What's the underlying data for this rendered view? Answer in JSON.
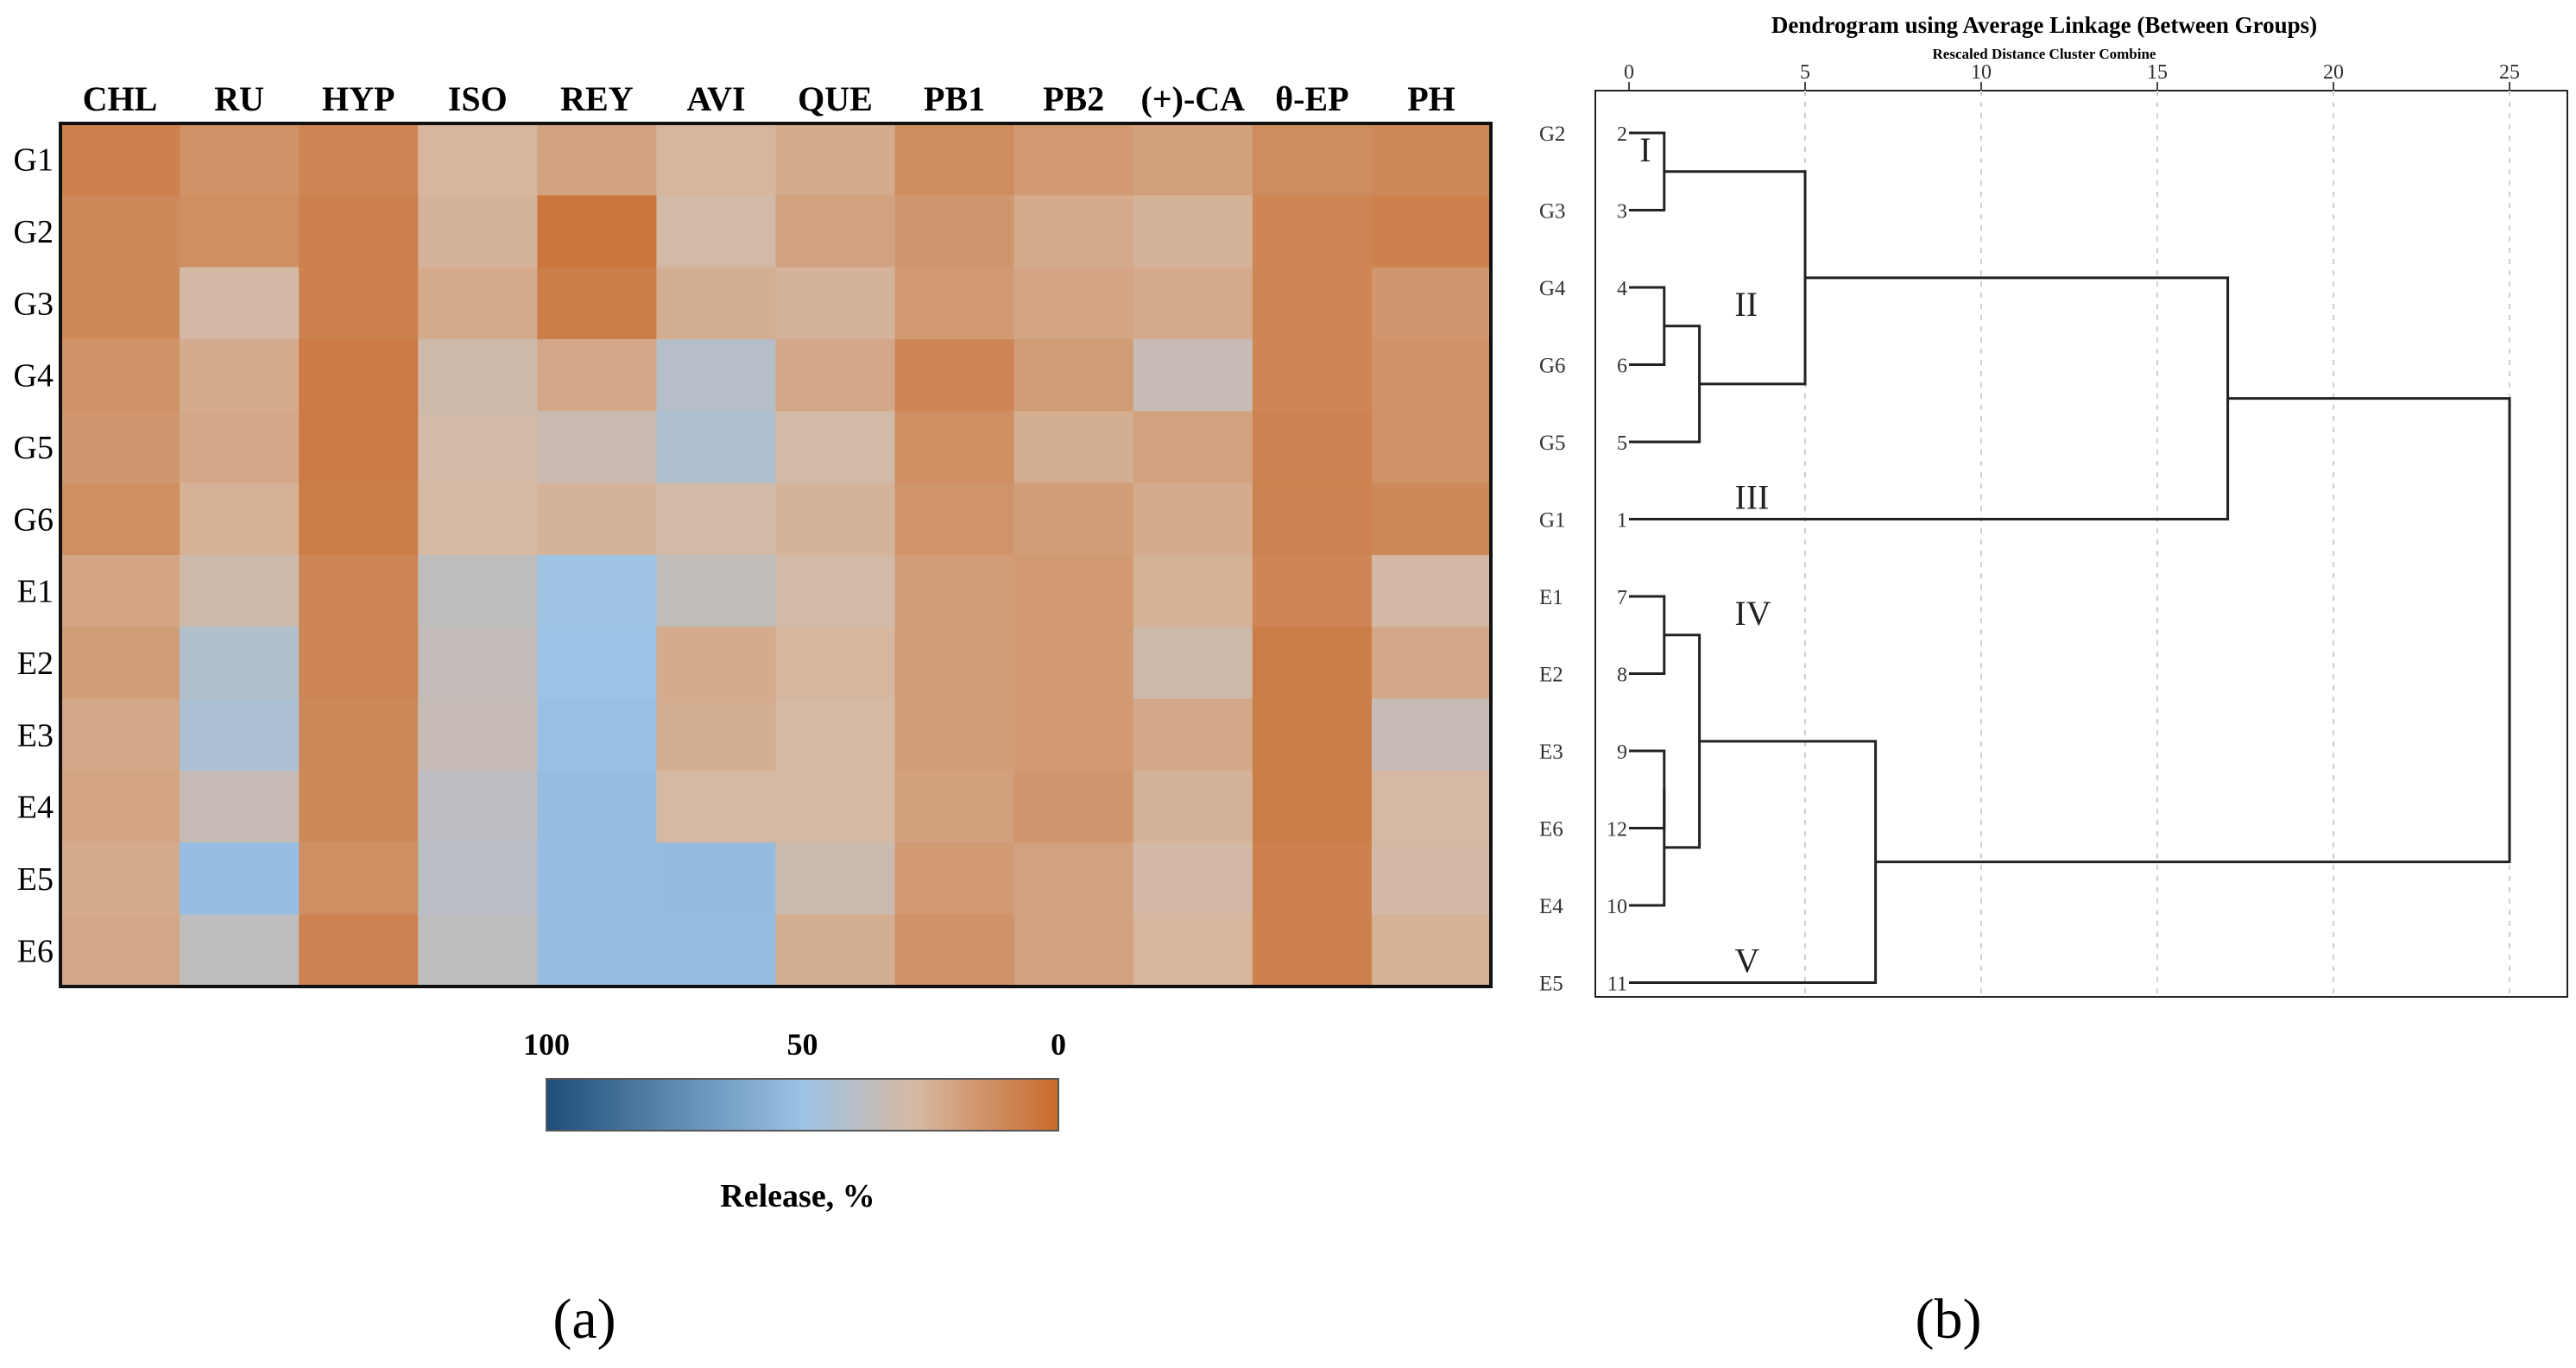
{
  "colors": {
    "low": "#1f4e79",
    "mid": "#9cc3e6",
    "neutral": "#d6b9a2",
    "high": "#c96a2b",
    "frame": "#111111",
    "dendro_line": "#222222",
    "grid": "#cfcfcf"
  },
  "panels": {
    "a": "(a)",
    "b": "(b)"
  },
  "chart_data": [
    {
      "type": "heatmap",
      "title": "",
      "columns": [
        "CHL",
        "RU",
        "HYP",
        "ISO",
        "REY",
        "AVI",
        "QUE",
        "PB1",
        "PB2",
        "(+)-CA",
        "θ-EP",
        "PH"
      ],
      "rows": [
        "G1",
        "G2",
        "G3",
        "G4",
        "G5",
        "G6",
        "E1",
        "E2",
        "E3",
        "E4",
        "E5",
        "E6"
      ],
      "values": [
        [
          8,
          14,
          10,
          27,
          20,
          27,
          23,
          12,
          17,
          19,
          12,
          11
        ],
        [
          11,
          13,
          8,
          26,
          4,
          30,
          20,
          16,
          23,
          26,
          10,
          8
        ],
        [
          11,
          29,
          8,
          23,
          7,
          24,
          26,
          17,
          21,
          23,
          10,
          16
        ],
        [
          14,
          23,
          6,
          31,
          22,
          40,
          22,
          10,
          18,
          34,
          10,
          14
        ],
        [
          16,
          22,
          6,
          30,
          33,
          43,
          30,
          13,
          24,
          20,
          9,
          14
        ],
        [
          13,
          25,
          7,
          28,
          26,
          30,
          26,
          15,
          18,
          23,
          9,
          11
        ],
        [
          21,
          31,
          10,
          37,
          49,
          36,
          30,
          18,
          17,
          25,
          10,
          29
        ],
        [
          18,
          42,
          10,
          35,
          50,
          23,
          27,
          18,
          17,
          31,
          7,
          22
        ],
        [
          22,
          44,
          11,
          34,
          51,
          24,
          28,
          18,
          17,
          22,
          7,
          34
        ],
        [
          21,
          34,
          11,
          38,
          52,
          28,
          28,
          19,
          16,
          26,
          7,
          28
        ],
        [
          23,
          52,
          13,
          39,
          52,
          53,
          32,
          17,
          20,
          29,
          8,
          29
        ],
        [
          22,
          37,
          9,
          37,
          52,
          52,
          24,
          14,
          20,
          27,
          8,
          25
        ]
      ],
      "colorbar": {
        "ticks": [
          "100",
          "50",
          "0"
        ],
        "tick_values": [
          100,
          50,
          0
        ],
        "label": "Release, %"
      }
    },
    {
      "type": "dendrogram",
      "title": "Dendrogram using Average Linkage (Between Groups)",
      "subtitle": "Rescaled Distance Cluster Combine",
      "axis_ticks": [
        0,
        5,
        10,
        15,
        20,
        25
      ],
      "xlim": [
        0,
        26.3
      ],
      "leaves": [
        {
          "label": "G2",
          "num": "2"
        },
        {
          "label": "G3",
          "num": "3"
        },
        {
          "label": "G4",
          "num": "4"
        },
        {
          "label": "G6",
          "num": "6"
        },
        {
          "label": "G5",
          "num": "5"
        },
        {
          "label": "G1",
          "num": "1"
        },
        {
          "label": "E1",
          "num": "7"
        },
        {
          "label": "E2",
          "num": "8"
        },
        {
          "label": "E3",
          "num": "9"
        },
        {
          "label": "E6",
          "num": "12"
        },
        {
          "label": "E4",
          "num": "10"
        },
        {
          "label": "E5",
          "num": "11"
        }
      ],
      "merges": [
        {
          "a": 0,
          "b": 1,
          "distance": 1
        },
        {
          "a": 2,
          "b": 3,
          "distance": 1
        },
        {
          "a": "m1",
          "b": 4,
          "distance": 2
        },
        {
          "a": "m0",
          "b": "m2",
          "distance": 5
        },
        {
          "a": "m3",
          "b": 5,
          "distance": 17
        },
        {
          "a": 6,
          "b": 7,
          "distance": 1
        },
        {
          "a": 8,
          "b": 9,
          "distance": 1
        },
        {
          "a": "m6",
          "b": 10,
          "distance": 1
        },
        {
          "a": "m5",
          "b": "m7",
          "distance": 2
        },
        {
          "a": "m8",
          "b": 11,
          "distance": 7
        },
        {
          "a": "m4",
          "b": "m9",
          "distance": 25
        }
      ],
      "clusters": [
        {
          "label": "I",
          "leaf_pos": 0.5,
          "distance": 0.3
        },
        {
          "label": "II",
          "leaf_pos": 2.5,
          "distance": 3
        },
        {
          "label": "III",
          "leaf_pos": 5,
          "distance": 3
        },
        {
          "label": "IV",
          "leaf_pos": 6.5,
          "distance": 3
        },
        {
          "label": "V",
          "leaf_pos": 11,
          "distance": 3
        }
      ]
    }
  ]
}
